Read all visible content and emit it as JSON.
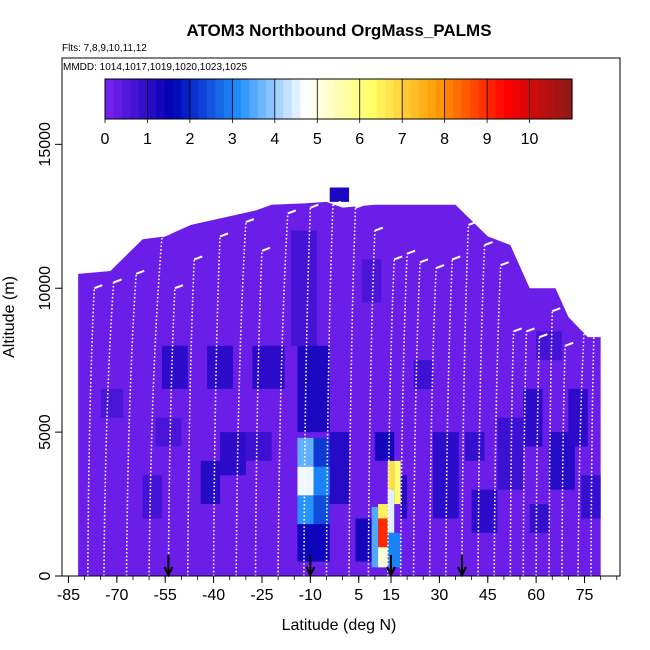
{
  "chart_data": {
    "type": "heatmap",
    "title": "ATOM3 Northbound OrgMass_PALMS",
    "flights_label": "Flts: 7,8,9,10,11,12",
    "mmdd_label": "MMDD: 1014,1017,1019,1020,1023,1025",
    "xlabel": "Latitude (deg N)",
    "ylabel": "Altitude (m)",
    "xlim": [
      -87,
      86
    ],
    "ylim": [
      0,
      18000
    ],
    "x_ticks": [
      -85,
      -70,
      -55,
      -40,
      -25,
      -10,
      5,
      15,
      30,
      45,
      60,
      75
    ],
    "x_tick_labels": [
      "-85",
      "-70",
      "-55",
      "-40",
      "-25",
      "-10",
      "5",
      "15",
      "30",
      "45",
      "60",
      "75"
    ],
    "x_minor_step": 5,
    "y_ticks": [
      0,
      5000,
      10000,
      15000
    ],
    "y_tick_labels": [
      "0",
      "5000",
      "10000",
      "15000"
    ],
    "colorbar": {
      "min": 0,
      "max": 11,
      "ticks": [
        0,
        1,
        2,
        3,
        4,
        5,
        6,
        7,
        8,
        9,
        10
      ],
      "tick_labels": [
        "0",
        "1",
        "2",
        "3",
        "4",
        "5",
        "6",
        "7",
        "8",
        "9",
        "10"
      ],
      "colors": [
        "#7a22f0",
        "#0000b4",
        "#1f8fff",
        "#ffffff",
        "#ffff66",
        "#ff9900",
        "#ff0000",
        "#8b1a1a"
      ]
    },
    "arrow_latitudes": [
      -54,
      -10,
      15,
      37
    ],
    "envelope_top": [
      [
        -82,
        10500
      ],
      [
        -72,
        10600
      ],
      [
        -62,
        11700
      ],
      [
        -55,
        11800
      ],
      [
        -47,
        12200
      ],
      [
        -35,
        12500
      ],
      [
        -27,
        12700
      ],
      [
        -22,
        12900
      ],
      [
        -12,
        12950
      ],
      [
        -5,
        13000
      ],
      [
        0,
        12800
      ],
      [
        10,
        12900
      ],
      [
        20,
        12900
      ],
      [
        28,
        12900
      ],
      [
        35,
        12900
      ],
      [
        45,
        11800
      ],
      [
        52,
        11500
      ],
      [
        58,
        10000
      ],
      [
        66,
        10000
      ],
      [
        70,
        9000
      ],
      [
        76,
        8300
      ],
      [
        80,
        8300
      ]
    ],
    "envelope_bottom_y": 0,
    "background_value": 0.2,
    "cells": [
      {
        "x": [
          -56,
          -48
        ],
        "y": [
          6500,
          8000
        ],
        "v": 1.0
      },
      {
        "x": [
          -58,
          -50
        ],
        "y": [
          4500,
          5500
        ],
        "v": 0.6
      },
      {
        "x": [
          -42,
          -34
        ],
        "y": [
          6500,
          8000
        ],
        "v": 1.0
      },
      {
        "x": [
          -38,
          -30
        ],
        "y": [
          3500,
          5000
        ],
        "v": 1.0
      },
      {
        "x": [
          -44,
          -38
        ],
        "y": [
          2500,
          4000
        ],
        "v": 1.1
      },
      {
        "x": [
          -30,
          -22
        ],
        "y": [
          4000,
          5000
        ],
        "v": 0.8
      },
      {
        "x": [
          -28,
          -18
        ],
        "y": [
          6500,
          8000
        ],
        "v": 1.0
      },
      {
        "x": [
          -16,
          -8
        ],
        "y": [
          8000,
          12000
        ],
        "v": 0.7
      },
      {
        "x": [
          -14,
          -4
        ],
        "y": [
          5000,
          8000
        ],
        "v": 1.2
      },
      {
        "x": [
          -14,
          -9
        ],
        "y": [
          2800,
          3800
        ],
        "v": 4.6
      },
      {
        "x": [
          -14,
          -9
        ],
        "y": [
          1800,
          2800
        ],
        "v": 3.2
      },
      {
        "x": [
          -14,
          -9
        ],
        "y": [
          3800,
          4800
        ],
        "v": 3.6
      },
      {
        "x": [
          -9,
          -4
        ],
        "y": [
          2800,
          3800
        ],
        "v": 3.0
      },
      {
        "x": [
          -9,
          -4
        ],
        "y": [
          1800,
          2800
        ],
        "v": 2.4
      },
      {
        "x": [
          -9,
          -4
        ],
        "y": [
          3800,
          4800
        ],
        "v": 2.2
      },
      {
        "x": [
          -14,
          -4
        ],
        "y": [
          500,
          1800
        ],
        "v": 1.4
      },
      {
        "x": [
          -4,
          2
        ],
        "y": [
          2500,
          5000
        ],
        "v": 1.1
      },
      {
        "x": [
          4,
          9
        ],
        "y": [
          500,
          2000
        ],
        "v": 1.3
      },
      {
        "x": [
          9,
          11
        ],
        "y": [
          300,
          2400
        ],
        "v": 3.5
      },
      {
        "x": [
          11,
          14
        ],
        "y": [
          1000,
          2000
        ],
        "v": 9.0
      },
      {
        "x": [
          11,
          14
        ],
        "y": [
          2000,
          2500
        ],
        "v": 6.5
      },
      {
        "x": [
          11,
          14
        ],
        "y": [
          300,
          1000
        ],
        "v": 5.2
      },
      {
        "x": [
          14,
          16
        ],
        "y": [
          1500,
          3000
        ],
        "v": 4.5
      },
      {
        "x": [
          14,
          16
        ],
        "y": [
          3000,
          4000
        ],
        "v": 6.8
      },
      {
        "x": [
          16,
          18
        ],
        "y": [
          2500,
          4000
        ],
        "v": 6.2
      },
      {
        "x": [
          14,
          18
        ],
        "y": [
          300,
          1500
        ],
        "v": 3.0
      },
      {
        "x": [
          10,
          16
        ],
        "y": [
          4000,
          5000
        ],
        "v": 1.3
      },
      {
        "x": [
          18,
          20
        ],
        "y": [
          2000,
          3500
        ],
        "v": 1.1
      },
      {
        "x": [
          6,
          12
        ],
        "y": [
          9500,
          11000
        ],
        "v": 0.6
      },
      {
        "x": [
          22,
          28
        ],
        "y": [
          6500,
          7500
        ],
        "v": 0.8
      },
      {
        "x": [
          28,
          36
        ],
        "y": [
          2000,
          5000
        ],
        "v": 1.0
      },
      {
        "x": [
          38,
          44
        ],
        "y": [
          4000,
          5000
        ],
        "v": 0.9
      },
      {
        "x": [
          40,
          48
        ],
        "y": [
          1500,
          3000
        ],
        "v": 1.0
      },
      {
        "x": [
          48,
          56
        ],
        "y": [
          3000,
          5500
        ],
        "v": 0.8
      },
      {
        "x": [
          56,
          62
        ],
        "y": [
          4500,
          6500
        ],
        "v": 1.0
      },
      {
        "x": [
          58,
          64
        ],
        "y": [
          1500,
          2500
        ],
        "v": 0.9
      },
      {
        "x": [
          64,
          72
        ],
        "y": [
          3000,
          5000
        ],
        "v": 1.1
      },
      {
        "x": [
          70,
          76
        ],
        "y": [
          4500,
          6500
        ],
        "v": 1.0
      },
      {
        "x": [
          74,
          80
        ],
        "y": [
          2000,
          3500
        ],
        "v": 0.9
      },
      {
        "x": [
          60,
          68
        ],
        "y": [
          7500,
          8500
        ],
        "v": 0.7
      },
      {
        "x": [
          -4,
          2
        ],
        "y": [
          13000,
          13500
        ],
        "v": 1.2
      },
      {
        "x": [
          -62,
          -56
        ],
        "y": [
          2000,
          3500
        ],
        "v": 0.7
      },
      {
        "x": [
          -75,
          -68
        ],
        "y": [
          5500,
          6500
        ],
        "v": 0.6
      }
    ],
    "profiles": [
      {
        "lat_bottom": -79,
        "lat_top": -77,
        "alt_top": 10000
      },
      {
        "lat_bottom": -74,
        "lat_top": -71,
        "alt_top": 10200
      },
      {
        "lat_bottom": -67,
        "lat_top": -64,
        "alt_top": 10500
      },
      {
        "lat_bottom": -60,
        "lat_top": -56,
        "alt_top": 11800
      },
      {
        "lat_bottom": -54,
        "lat_top": -52,
        "alt_top": 10000
      },
      {
        "lat_bottom": -48,
        "lat_top": -46,
        "alt_top": 11000
      },
      {
        "lat_bottom": -40,
        "lat_top": -38,
        "alt_top": 11800
      },
      {
        "lat_bottom": -33,
        "lat_top": -30,
        "alt_top": 12300
      },
      {
        "lat_bottom": -27,
        "lat_top": -25,
        "alt_top": 11300
      },
      {
        "lat_bottom": -20,
        "lat_top": -17,
        "alt_top": 12600
      },
      {
        "lat_bottom": -12,
        "lat_top": -10,
        "alt_top": 12800
      },
      {
        "lat_bottom": -5,
        "lat_top": -3,
        "alt_top": 12900
      },
      {
        "lat_bottom": 2,
        "lat_top": 4,
        "alt_top": 12800
      },
      {
        "lat_bottom": 8,
        "lat_top": 10,
        "alt_top": 12000
      },
      {
        "lat_bottom": 14,
        "lat_top": 16,
        "alt_top": 11000
      },
      {
        "lat_bottom": 18,
        "lat_top": 20,
        "alt_top": 11200
      },
      {
        "lat_bottom": 22,
        "lat_top": 24,
        "alt_top": 10900
      },
      {
        "lat_bottom": 27,
        "lat_top": 29,
        "alt_top": 10700
      },
      {
        "lat_bottom": 32,
        "lat_top": 34,
        "alt_top": 11000
      },
      {
        "lat_bottom": 37,
        "lat_top": 39,
        "alt_top": 12200
      },
      {
        "lat_bottom": 42,
        "lat_top": 44,
        "alt_top": 11500
      },
      {
        "lat_bottom": 47,
        "lat_top": 49,
        "alt_top": 10800
      },
      {
        "lat_bottom": 52,
        "lat_top": 53,
        "alt_top": 8500
      },
      {
        "lat_bottom": 56,
        "lat_top": 57,
        "alt_top": 8500
      },
      {
        "lat_bottom": 60,
        "lat_top": 61,
        "alt_top": 8300
      },
      {
        "lat_bottom": 64,
        "lat_top": 65,
        "alt_top": 9200
      },
      {
        "lat_bottom": 68,
        "lat_top": 69,
        "alt_top": 8000
      },
      {
        "lat_bottom": 73,
        "lat_top": 75,
        "alt_top": 8800
      },
      {
        "lat_bottom": 77,
        "lat_top": 78,
        "alt_top": 8800
      }
    ]
  }
}
